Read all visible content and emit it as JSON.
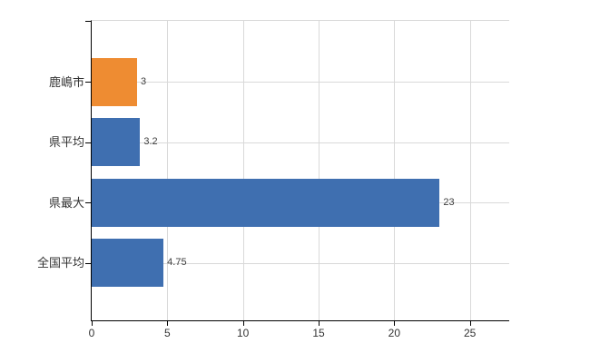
{
  "chart": {
    "background": "#ffffff",
    "axis_color": "#000000",
    "grid_color": "#d9d9d9",
    "category_label_color": "#333333",
    "value_label_color": "#404040"
  },
  "chart_data": {
    "type": "bar",
    "orientation": "horizontal",
    "title": "",
    "xlabel": "",
    "ylabel": "",
    "categories": [
      "鹿嶋市",
      "県平均",
      "県最大",
      "全国平均"
    ],
    "values": [
      3,
      3.2,
      23,
      4.75
    ],
    "value_labels": [
      "3",
      "3.2",
      "23",
      "4.75"
    ],
    "bar_colors": [
      "#ee8c32",
      "#3f6fb0",
      "#3f6fb0",
      "#3f6fb0"
    ],
    "x_ticks": [
      0,
      5,
      10,
      15,
      20,
      25
    ],
    "xlim": [
      0,
      27.6
    ],
    "grid": "vertical-at-ticks-and-horizontal-at-category-centers",
    "legend": "none"
  }
}
